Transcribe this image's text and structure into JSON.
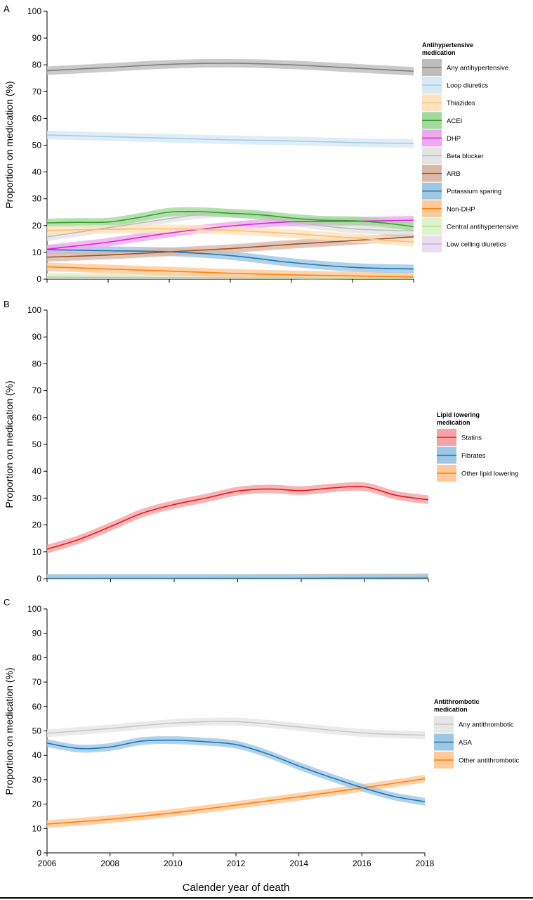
{
  "panels": [
    {
      "letter": "A",
      "ylabel": "Proportion on medication (%)",
      "legend_title": [
        "Antihypertensive",
        "medication"
      ]
    },
    {
      "letter": "B",
      "ylabel": "Proportion on medication (%)",
      "legend_title": [
        "Lipid lowering",
        "medication"
      ]
    },
    {
      "letter": "C",
      "ylabel": "Proportion on medication (%)",
      "legend_title": [
        "Antithrombotic",
        "medication"
      ]
    }
  ],
  "xlabel": "Calender year of death",
  "chart_data": [
    {
      "type": "line",
      "panel": "A",
      "xlim": [
        2006,
        2018
      ],
      "ylim": [
        0,
        100
      ],
      "yticks": [
        0,
        10,
        20,
        30,
        40,
        50,
        60,
        70,
        80,
        90,
        100
      ],
      "legend_title": "Antihypertensive medication",
      "series": [
        {
          "name": "Any antihypertensive",
          "color": "#7f7f7f",
          "band": "#bdbdbd",
          "x": [
            2006,
            2008,
            2010,
            2012,
            2014,
            2016,
            2018
          ],
          "y": [
            77.8,
            79,
            80.2,
            80.6,
            80,
            78.8,
            77.6
          ]
        },
        {
          "name": "Loop diuretics",
          "color": "#a6cee3",
          "band": "#d6e9f5",
          "x": [
            2006,
            2008,
            2010,
            2012,
            2014,
            2016,
            2018
          ],
          "y": [
            53.8,
            53.2,
            52.6,
            52,
            51.6,
            51,
            50.6
          ]
        },
        {
          "name": "Thiazides",
          "color": "#fdbf6f",
          "band": "#fee3c0",
          "x": [
            2006,
            2008,
            2010,
            2012,
            2014,
            2016,
            2018
          ],
          "y": [
            18.2,
            18.6,
            18.8,
            18.2,
            17,
            15.4,
            13.8
          ]
        },
        {
          "name": "ACEI",
          "color": "#33a02c",
          "band": "#a3d99b",
          "x": [
            2006,
            2007,
            2008,
            2009,
            2010,
            2011,
            2012,
            2013,
            2014,
            2015,
            2016,
            2017,
            2018
          ],
          "y": [
            21,
            21.2,
            21.3,
            23,
            25,
            25.2,
            24.6,
            24,
            22.8,
            22,
            21.8,
            21,
            19.6
          ]
        },
        {
          "name": "DHP",
          "color": "#d62ad6",
          "band": "#eeaaee",
          "x": [
            2006,
            2008,
            2010,
            2012,
            2014,
            2016,
            2018
          ],
          "y": [
            11.2,
            13.8,
            17.2,
            19.8,
            21.4,
            21.6,
            22
          ]
        },
        {
          "name": "Beta blocker",
          "color": "#bdbdbd",
          "band": "#e3e3e3",
          "x": [
            2006,
            2008,
            2010,
            2011,
            2012,
            2013,
            2014,
            2016,
            2018
          ],
          "y": [
            15.8,
            19.2,
            22.6,
            24.2,
            24.6,
            23.6,
            21.4,
            18.8,
            18
          ]
        },
        {
          "name": "ARB",
          "color": "#a0522d",
          "band": "#d9b8a6",
          "x": [
            2006,
            2008,
            2010,
            2012,
            2014,
            2016,
            2018
          ],
          "y": [
            8.2,
            9,
            10.2,
            11.4,
            13,
            14.4,
            15.8
          ]
        },
        {
          "name": "Potassium sparing",
          "color": "#1f78b4",
          "band": "#9ec7e4",
          "x": [
            2006,
            2008,
            2010,
            2012,
            2014,
            2016,
            2018
          ],
          "y": [
            11,
            10.6,
            10.2,
            8.8,
            6.2,
            4.4,
            3.8
          ]
        },
        {
          "name": "Non-DHP",
          "color": "#ff7f0e",
          "band": "#ffc999",
          "x": [
            2006,
            2008,
            2010,
            2012,
            2014,
            2016,
            2018
          ],
          "y": [
            4.6,
            3.8,
            3,
            2.2,
            1.6,
            1.2,
            0.8
          ]
        },
        {
          "name": "Central antihypertensive",
          "color": "#b2df8a",
          "band": "#dff2cf",
          "x": [
            2006,
            2008,
            2010,
            2012,
            2014,
            2016,
            2018
          ],
          "y": [
            0.8,
            0.7,
            0.6,
            0.5,
            0.4,
            0.3,
            0.3
          ]
        },
        {
          "name": "Low celling diuretics",
          "color": "#cab2d6",
          "band": "#e9def0",
          "x": [
            2006,
            2008,
            2010,
            2012,
            2014,
            2016,
            2018
          ],
          "y": [
            0.3,
            0.3,
            0.3,
            0.3,
            0.2,
            0.2,
            0.2
          ]
        }
      ]
    },
    {
      "type": "line",
      "panel": "B",
      "xlim": [
        2006,
        2018
      ],
      "ylim": [
        0,
        100
      ],
      "yticks": [
        0,
        10,
        20,
        30,
        40,
        50,
        60,
        70,
        80,
        90,
        100
      ],
      "legend_title": "Lipid lowering medication",
      "series": [
        {
          "name": "Statins",
          "color": "#e31a1c",
          "band": "#f4a3a4",
          "x": [
            2006,
            2007,
            2008,
            2009,
            2010,
            2011,
            2012,
            2013,
            2014,
            2015,
            2016,
            2017,
            2018
          ],
          "y": [
            11,
            14.6,
            19.4,
            24.4,
            27.6,
            30,
            32.6,
            33.4,
            32.8,
            33.8,
            34.2,
            31,
            29.4
          ]
        },
        {
          "name": "Fibrates",
          "color": "#1f78b4",
          "band": "#9ec7e4",
          "x": [
            2006,
            2010,
            2014,
            2018
          ],
          "y": [
            0.1,
            0.1,
            0.1,
            0.1
          ]
        },
        {
          "name": "Other lipid lowering",
          "color": "#ff7f0e",
          "band": "#ffc999",
          "x": [
            2006,
            2010,
            2014,
            2018
          ],
          "y": [
            0.1,
            0.1,
            0.2,
            0.4
          ]
        }
      ]
    },
    {
      "type": "line",
      "panel": "C",
      "xlim": [
        2006,
        2018
      ],
      "ylim": [
        0,
        100
      ],
      "xticks": [
        2006,
        2008,
        2010,
        2012,
        2014,
        2016,
        2018
      ],
      "yticks": [
        0,
        10,
        20,
        30,
        40,
        50,
        60,
        70,
        80,
        90,
        100
      ],
      "xlabel": "Calender year of death",
      "legend_title": "Antithrombotic medication",
      "series": [
        {
          "name": "Any antithrombotic",
          "color": "#c8c8c8",
          "band": "#e6e6e6",
          "x": [
            2006,
            2008,
            2010,
            2012,
            2014,
            2016,
            2018
          ],
          "y": [
            49,
            51,
            53.2,
            53.8,
            51.6,
            49.2,
            48.2
          ]
        },
        {
          "name": "ASA",
          "color": "#1f78b4",
          "band": "#9ec7e4",
          "x": [
            2006,
            2007,
            2008,
            2009,
            2010,
            2011,
            2012,
            2013,
            2014,
            2015,
            2016,
            2017,
            2018
          ],
          "y": [
            45,
            42.8,
            43.4,
            45.8,
            46.2,
            45.6,
            44.4,
            40.6,
            35.6,
            31,
            26.8,
            23.2,
            21
          ]
        },
        {
          "name": "Other antithrombotic",
          "color": "#ff7f0e",
          "band": "#ffc999",
          "x": [
            2006,
            2008,
            2010,
            2012,
            2014,
            2016,
            2018
          ],
          "y": [
            11.8,
            13.8,
            16.4,
            19.6,
            23,
            26.6,
            30.4
          ]
        }
      ]
    }
  ]
}
